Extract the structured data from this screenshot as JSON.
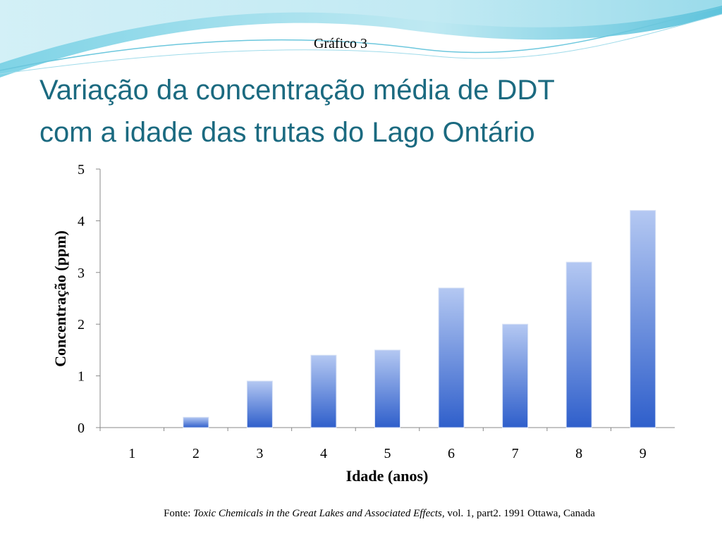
{
  "chart_data": {
    "type": "bar",
    "header": "Gráfico 3",
    "title_lines": [
      "Variação da concentração média de DDT",
      "com a idade das trutas do Lago Ontário"
    ],
    "x_label": "Idade (anos)",
    "y_label": "Concentração (ppm)",
    "categories": [
      "1",
      "2",
      "3",
      "4",
      "5",
      "6",
      "7",
      "8",
      "9"
    ],
    "values": [
      0,
      0.2,
      0.9,
      1.4,
      1.5,
      2.7,
      2.0,
      3.2,
      4.2
    ],
    "color": "#2f5fcb",
    "ylim": [
      0,
      5
    ],
    "yticks": [
      0,
      1,
      2,
      3,
      4,
      5
    ],
    "grid": false,
    "source": {
      "prefix": "Fonte: ",
      "italic": "Toxic Chemicals in the Great Lakes and Associated Effects,",
      "suffix": " vol. 1, part2. 1991 Ottawa, Canada"
    }
  }
}
